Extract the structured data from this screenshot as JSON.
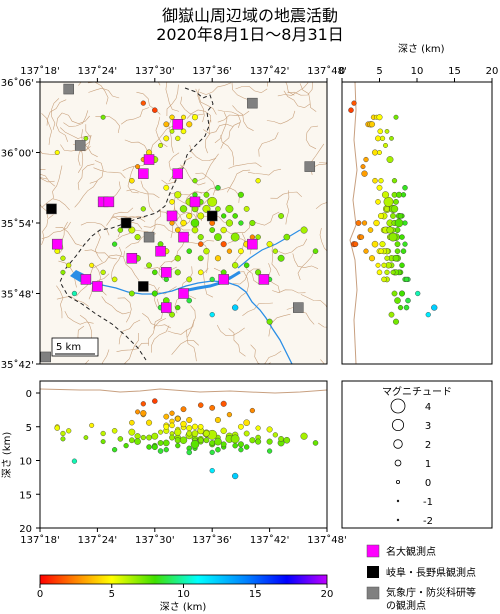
{
  "title": {
    "line1": "御嶽山周辺域の地震活動",
    "line2": "2020年8月1日～8月31日"
  },
  "map": {
    "lon_ticks": [
      "137˚18'",
      "137˚24'",
      "137˚30'",
      "137˚36'",
      "137˚42'",
      "137˚48'"
    ],
    "lat_ticks": [
      "36˚06'",
      "36˚00'",
      "35˚54'",
      "35˚48'",
      "35˚42'"
    ],
    "lon_range_deg": [
      137.3,
      137.8
    ],
    "lat_range_deg": [
      35.7,
      36.1
    ],
    "scale_label": "5 km"
  },
  "depth_axis": {
    "label": "深さ (km)",
    "ticks": [
      "0",
      "5",
      "10",
      "15",
      "20"
    ],
    "range": [
      0,
      20
    ]
  },
  "cross_section": {
    "ylabel": "深さ (km)",
    "ticks": [
      "0",
      "5",
      "10",
      "15",
      "20"
    ],
    "lon_ticks": [
      "137˚18'",
      "137˚24'",
      "137˚30'",
      "137˚36'",
      "137˚42'",
      "137˚48'"
    ]
  },
  "legend": {
    "title": "マグニチュード",
    "magnitudes": [
      "4",
      "3",
      "2",
      "1",
      "0",
      "-1",
      "-2"
    ]
  },
  "stations": [
    {
      "label": "名大観測点",
      "color": "#ff00ff"
    },
    {
      "label": "岐阜・長野県観測点",
      "color": "#000000"
    },
    {
      "label": "気象庁・防災科研等",
      "label2": "の観測点",
      "color": "#808080"
    }
  ],
  "colorbar": {
    "ticks": [
      "0",
      "5",
      "10",
      "15",
      "20"
    ],
    "label": "深さ (km)"
  },
  "chart_data": {
    "type": "scatter",
    "x_name": "longitude_deg",
    "y_name": "latitude_deg",
    "fields": [
      "lon_deg",
      "lat_deg",
      "depth_km",
      "magnitude"
    ],
    "events": [
      [
        137.52,
        36.04,
        3.5,
        0.8
      ],
      [
        137.53,
        36.05,
        4.2,
        0.6
      ],
      [
        137.54,
        36.04,
        3.8,
        1.0
      ],
      [
        137.55,
        36.05,
        4.6,
        0.5
      ],
      [
        137.56,
        36.04,
        4.0,
        0.9
      ],
      [
        137.55,
        36.03,
        5.1,
        0.7
      ],
      [
        137.53,
        36.03,
        6.0,
        0.4
      ],
      [
        137.54,
        36.02,
        5.4,
        0.6
      ],
      [
        137.52,
        36.02,
        4.8,
        0.8
      ],
      [
        137.51,
        36.01,
        5.8,
        0.5
      ],
      [
        137.5,
        35.99,
        6.4,
        1.2
      ],
      [
        137.48,
        35.99,
        3.2,
        0.6
      ],
      [
        137.47,
        35.98,
        2.8,
        0.5
      ],
      [
        137.49,
        36.0,
        4.4,
        0.9
      ],
      [
        137.5,
        36.06,
        1.2,
        0.7
      ],
      [
        137.48,
        36.07,
        1.6,
        0.6
      ],
      [
        137.57,
        36.05,
        5.0,
        0.9
      ],
      [
        137.33,
        36.0,
        5.0,
        0.5
      ],
      [
        137.38,
        36.02,
        6.6,
        0.4
      ],
      [
        137.41,
        36.05,
        7.2,
        0.5
      ],
      [
        137.56,
        35.93,
        6.3,
        1.4
      ],
      [
        137.57,
        35.92,
        6.8,
        1.1
      ],
      [
        137.58,
        35.93,
        7.2,
        0.8
      ],
      [
        137.59,
        35.92,
        6.0,
        1.6
      ],
      [
        137.6,
        35.91,
        7.6,
        0.9
      ],
      [
        137.58,
        35.91,
        5.6,
        1.2
      ],
      [
        137.61,
        35.92,
        6.6,
        0.7
      ],
      [
        137.62,
        35.91,
        8.0,
        0.6
      ],
      [
        137.6,
        35.93,
        6.2,
        2.3
      ],
      [
        137.59,
        35.94,
        7.0,
        0.8
      ],
      [
        137.57,
        35.94,
        8.2,
        0.6
      ],
      [
        137.56,
        35.91,
        5.2,
        0.9
      ],
      [
        137.55,
        35.9,
        4.6,
        1.0
      ],
      [
        137.54,
        35.89,
        3.8,
        0.7
      ],
      [
        137.53,
        35.9,
        3.0,
        0.6
      ],
      [
        137.55,
        35.88,
        2.4,
        0.8
      ],
      [
        137.57,
        35.89,
        6.0,
        1.1
      ],
      [
        137.58,
        35.88,
        6.8,
        0.9
      ],
      [
        137.6,
        35.89,
        7.4,
        0.8
      ],
      [
        137.62,
        35.89,
        5.6,
        1.0
      ],
      [
        137.63,
        35.9,
        6.4,
        1.3
      ],
      [
        137.64,
        35.91,
        7.8,
        0.7
      ],
      [
        137.65,
        35.9,
        8.4,
        0.6
      ],
      [
        137.66,
        35.92,
        6.0,
        0.8
      ],
      [
        137.67,
        35.9,
        7.0,
        0.9
      ],
      [
        137.68,
        35.88,
        6.6,
        0.7
      ],
      [
        137.7,
        35.87,
        5.4,
        0.9
      ],
      [
        137.72,
        35.85,
        7.4,
        1.2
      ],
      [
        137.71,
        35.86,
        6.2,
        0.6
      ],
      [
        137.66,
        35.87,
        4.4,
        1.1
      ],
      [
        137.65,
        35.86,
        5.0,
        0.8
      ],
      [
        137.63,
        35.86,
        3.2,
        0.6
      ],
      [
        137.61,
        35.85,
        4.0,
        0.9
      ],
      [
        137.59,
        35.86,
        6.0,
        1.0
      ],
      [
        137.58,
        35.85,
        7.0,
        0.8
      ],
      [
        137.56,
        35.86,
        8.2,
        0.7
      ],
      [
        137.54,
        35.85,
        6.6,
        1.0
      ],
      [
        137.52,
        35.86,
        5.6,
        0.9
      ],
      [
        137.51,
        35.87,
        7.4,
        0.8
      ],
      [
        137.49,
        35.88,
        8.0,
        0.7
      ],
      [
        137.47,
        35.88,
        6.4,
        0.9
      ],
      [
        137.46,
        35.89,
        5.8,
        1.2
      ],
      [
        137.45,
        35.9,
        7.8,
        0.6
      ],
      [
        137.44,
        35.89,
        6.8,
        0.7
      ],
      [
        137.43,
        35.87,
        8.4,
        0.6
      ],
      [
        137.47,
        35.85,
        7.2,
        1.1
      ],
      [
        137.49,
        35.84,
        6.6,
        0.8
      ],
      [
        137.5,
        35.83,
        7.8,
        0.7
      ],
      [
        137.52,
        35.82,
        8.4,
        0.6
      ],
      [
        137.54,
        35.83,
        7.0,
        0.9
      ],
      [
        137.56,
        35.82,
        6.0,
        0.8
      ],
      [
        137.58,
        35.83,
        5.0,
        0.7
      ],
      [
        137.6,
        35.82,
        8.8,
        0.6
      ],
      [
        137.62,
        35.83,
        7.6,
        0.8
      ],
      [
        137.64,
        35.84,
        6.2,
        1.0
      ],
      [
        137.66,
        35.84,
        8.0,
        0.7
      ],
      [
        137.68,
        35.83,
        7.2,
        0.9
      ],
      [
        137.7,
        35.82,
        8.6,
        0.6
      ],
      [
        137.73,
        35.88,
        7.0,
        1.1
      ],
      [
        137.76,
        35.89,
        6.4,
        1.3
      ],
      [
        137.78,
        35.86,
        7.4,
        0.7
      ],
      [
        137.5,
        35.8,
        8.0,
        0.9
      ],
      [
        137.51,
        35.78,
        8.6,
        0.7
      ],
      [
        137.52,
        35.79,
        7.4,
        1.1
      ],
      [
        137.53,
        35.77,
        6.6,
        0.8
      ],
      [
        137.54,
        35.78,
        7.8,
        0.6
      ],
      [
        137.56,
        35.79,
        8.8,
        0.7
      ],
      [
        137.6,
        35.77,
        11.5,
        0.6
      ],
      [
        137.7,
        35.76,
        7.2,
        0.9
      ],
      [
        137.46,
        35.8,
        7.0,
        0.8
      ],
      [
        137.43,
        35.82,
        5.6,
        0.7
      ],
      [
        137.41,
        35.83,
        6.0,
        0.6
      ],
      [
        137.39,
        35.84,
        4.8,
        0.5
      ],
      [
        137.36,
        35.8,
        10.1,
        0.6
      ],
      [
        137.33,
        35.86,
        5.2,
        0.7
      ],
      [
        137.34,
        35.85,
        6.0,
        0.6
      ],
      [
        137.35,
        35.84,
        5.6,
        0.6
      ],
      [
        137.34,
        35.83,
        6.8,
        0.5
      ],
      [
        137.48,
        35.97,
        3.0,
        1.0
      ],
      [
        137.46,
        35.96,
        4.4,
        0.7
      ],
      [
        137.52,
        35.95,
        5.0,
        0.8
      ],
      [
        137.54,
        35.94,
        5.8,
        1.3
      ],
      [
        137.53,
        35.93,
        4.8,
        0.7
      ],
      [
        137.57,
        35.96,
        7.0,
        0.6
      ],
      [
        137.61,
        35.95,
        8.4,
        0.7
      ],
      [
        137.65,
        35.94,
        7.6,
        0.9
      ],
      [
        137.68,
        35.96,
        5.2,
        0.6
      ],
      [
        137.72,
        35.91,
        6.8,
        0.8
      ],
      [
        137.64,
        35.78,
        12.3,
        1.0
      ],
      [
        137.48,
        35.92,
        6.6,
        0.6
      ],
      [
        137.62,
        35.87,
        1.6,
        0.9
      ],
      [
        137.6,
        35.9,
        2.2,
        0.8
      ],
      [
        137.58,
        35.87,
        1.8,
        0.7
      ],
      [
        137.67,
        35.88,
        2.6,
        0.6
      ],
      [
        137.57,
        35.9,
        7.6,
        1.8
      ],
      [
        137.63,
        35.92,
        6.8,
        1.6
      ],
      [
        137.61,
        35.88,
        7.2,
        1.5
      ],
      [
        137.55,
        35.92,
        7.0,
        1.4
      ],
      [
        137.64,
        35.88,
        6.8,
        1.9
      ]
    ]
  }
}
